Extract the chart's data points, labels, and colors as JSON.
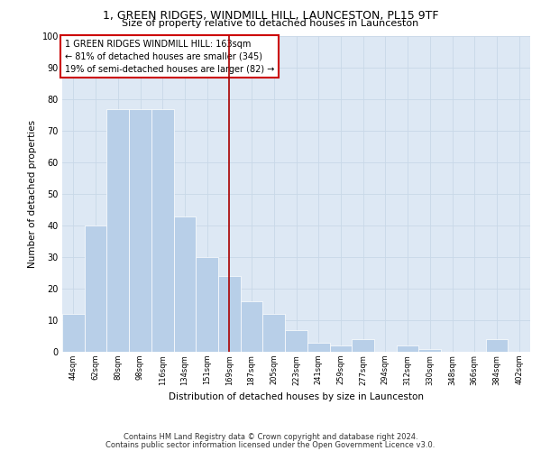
{
  "title1": "1, GREEN RIDGES, WINDMILL HILL, LAUNCESTON, PL15 9TF",
  "title2": "Size of property relative to detached houses in Launceston",
  "xlabel": "Distribution of detached houses by size in Launceston",
  "ylabel": "Number of detached properties",
  "categories": [
    "44sqm",
    "62sqm",
    "80sqm",
    "98sqm",
    "116sqm",
    "134sqm",
    "151sqm",
    "169sqm",
    "187sqm",
    "205sqm",
    "223sqm",
    "241sqm",
    "259sqm",
    "277sqm",
    "294sqm",
    "312sqm",
    "330sqm",
    "348sqm",
    "366sqm",
    "384sqm",
    "402sqm"
  ],
  "values": [
    12,
    40,
    77,
    77,
    77,
    43,
    30,
    24,
    16,
    12,
    7,
    3,
    2,
    4,
    0,
    2,
    1,
    0,
    0,
    4,
    0
  ],
  "bar_color": "#b8cfe8",
  "grid_color": "#c8d8e8",
  "background_color": "#dde8f4",
  "vline_x_index": 7,
  "vline_color": "#aa0000",
  "annotation_text": "1 GREEN RIDGES WINDMILL HILL: 163sqm\n← 81% of detached houses are smaller (345)\n19% of semi-detached houses are larger (82) →",
  "annotation_box_color": "#ffffff",
  "annotation_box_edge": "#cc0000",
  "ylim": [
    0,
    100
  ],
  "yticks": [
    0,
    10,
    20,
    30,
    40,
    50,
    60,
    70,
    80,
    90,
    100
  ],
  "footer1": "Contains HM Land Registry data © Crown copyright and database right 2024.",
  "footer2": "Contains public sector information licensed under the Open Government Licence v3.0."
}
